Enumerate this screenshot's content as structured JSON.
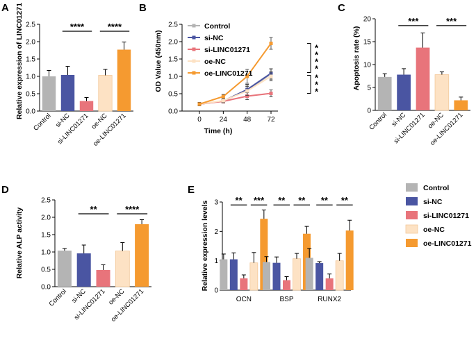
{
  "colors": {
    "Control": "#b4b4b4",
    "si-NC": "#4a55a2",
    "si-LINC01271": "#e8747b",
    "oe-NC": "#fde2c4",
    "oe-LINC01271": "#f59a30"
  },
  "chart_data": [
    {
      "id": "A",
      "panel": "A",
      "type": "bar",
      "ylabel": "Relative expression of LINC01271",
      "ylim": [
        0,
        2.5
      ],
      "yticks": [
        "0.0",
        "0.5",
        "1.0",
        "1.5",
        "2.0",
        "2.5"
      ],
      "categories": [
        "Control",
        "si-NC",
        "si-LINC01271",
        "oe-NC",
        "oe-LINC01271"
      ],
      "values": [
        1.0,
        1.04,
        0.29,
        1.03,
        1.77
      ],
      "errors": [
        0.17,
        0.25,
        0.1,
        0.17,
        0.22
      ],
      "significance": [
        {
          "from": 1,
          "to": 2,
          "label": "****",
          "y": 2.3
        },
        {
          "from": 3,
          "to": 4,
          "label": "****",
          "y": 2.3
        }
      ]
    },
    {
      "id": "B",
      "panel": "B",
      "type": "line",
      "xlabel": "Time (h)",
      "ylabel": "OD Value (450nm)",
      "ylim": [
        0,
        2.5
      ],
      "xlim": [
        0,
        72
      ],
      "yticks": [
        "0.0",
        "0.5",
        "1.0",
        "1.5",
        "2.0",
        "2.5"
      ],
      "xticks": [
        "0",
        "24",
        "48",
        "72"
      ],
      "x": [
        0,
        24,
        48,
        72
      ],
      "series": [
        {
          "name": "Control",
          "values": [
            0.2,
            0.29,
            0.6,
            1.07
          ],
          "errors": [
            0.05,
            0.05,
            0.15,
            0.15
          ]
        },
        {
          "name": "si-NC",
          "values": [
            0.2,
            0.29,
            0.62,
            1.09
          ],
          "errors": [
            0.05,
            0.05,
            0.15,
            0.12
          ]
        },
        {
          "name": "si-LINC01271",
          "values": [
            0.2,
            0.28,
            0.43,
            0.51
          ],
          "errors": [
            0.05,
            0.05,
            0.1,
            0.1
          ]
        },
        {
          "name": "oe-NC",
          "values": [
            0.2,
            0.3,
            0.58,
            1.0
          ],
          "errors": [
            0.05,
            0.05,
            0.13,
            0.13
          ]
        },
        {
          "name": "oe-LINC01271",
          "values": [
            0.2,
            0.42,
            1.0,
            1.95
          ],
          "errors": [
            0.05,
            0.06,
            0.2,
            0.17
          ]
        }
      ],
      "significance": [
        {
          "label": "****",
          "y1": 1.95,
          "y2": 1.07
        },
        {
          "label": "***",
          "y1": 1.07,
          "y2": 0.51
        }
      ]
    },
    {
      "id": "C",
      "panel": "C",
      "type": "bar",
      "ylabel": "Apoptosis rate (%)",
      "ylim": [
        0,
        20
      ],
      "yticks": [
        "0",
        "5",
        "10",
        "15",
        "20"
      ],
      "categories": [
        "Control",
        "si-NC",
        "si-LINC01271",
        "oe-NC",
        "oe-LINC01271"
      ],
      "values": [
        7.3,
        7.8,
        13.7,
        7.8,
        2.2
      ],
      "errors": [
        0.7,
        1.3,
        3.2,
        0.6,
        0.7
      ],
      "significance": [
        {
          "from": 1,
          "to": 2,
          "label": "***",
          "y": 18.5
        },
        {
          "from": 3,
          "to": 4,
          "label": "***",
          "y": 18.5
        }
      ]
    },
    {
      "id": "D",
      "panel": "D",
      "type": "bar",
      "ylabel": "Relative ALP activity",
      "ylim": [
        0,
        2.5
      ],
      "yticks": [
        "0.0",
        "0.5",
        "1.0",
        "1.5",
        "2.0",
        "2.5"
      ],
      "categories": [
        "Control",
        "si-NC",
        "si-LINC01271",
        "oe-NC",
        "oe-LINC01271"
      ],
      "values": [
        1.04,
        0.96,
        0.48,
        1.03,
        1.8
      ],
      "errors": [
        0.06,
        0.24,
        0.15,
        0.24,
        0.13
      ],
      "significance": [
        {
          "from": 1,
          "to": 2,
          "label": "**",
          "y": 2.1
        },
        {
          "from": 3,
          "to": 4,
          "label": "****",
          "y": 2.1
        }
      ]
    },
    {
      "id": "E",
      "panel": "E",
      "type": "bar",
      "ylabel": "Relative expression levels",
      "ylim": [
        0,
        3
      ],
      "yticks": [
        "0",
        "1",
        "2",
        "3"
      ],
      "categories": [
        "OCN",
        "BSP",
        "RUNX2"
      ],
      "series": [
        {
          "name": "Control",
          "values": [
            1.05,
            0.96,
            1.1
          ],
          "errors": [
            0.18,
            0.18,
            0.32
          ]
        },
        {
          "name": "si-NC",
          "values": [
            1.05,
            0.93,
            0.92
          ],
          "errors": [
            0.22,
            0.2,
            0.05
          ]
        },
        {
          "name": "si-LINC01271",
          "values": [
            0.4,
            0.34,
            0.4
          ],
          "errors": [
            0.12,
            0.12,
            0.15
          ]
        },
        {
          "name": "oe-NC",
          "values": [
            0.93,
            1.07,
            1.0
          ],
          "errors": [
            0.35,
            0.18,
            0.25
          ]
        },
        {
          "name": "oe-LINC01271",
          "values": [
            2.43,
            1.92,
            2.03
          ],
          "errors": [
            0.3,
            0.25,
            0.35
          ]
        }
      ],
      "significance": [
        {
          "group": 0,
          "from": 1,
          "to": 2,
          "label": "**",
          "y": 2.9
        },
        {
          "group": 0,
          "from": 3,
          "to": 4,
          "label": "***",
          "y": 2.9
        },
        {
          "group": 1,
          "from": 1,
          "to": 2,
          "label": "**",
          "y": 2.9
        },
        {
          "group": 1,
          "from": 3,
          "to": 4,
          "label": "**",
          "y": 2.9
        },
        {
          "group": 2,
          "from": 1,
          "to": 2,
          "label": "**",
          "y": 2.9
        },
        {
          "group": 2,
          "from": 3,
          "to": 4,
          "label": "**",
          "y": 2.9
        }
      ]
    }
  ],
  "legend": {
    "B": [
      "Control",
      "si-NC",
      "si-LINC01271",
      "oe-NC",
      "oe-LINC01271"
    ],
    "E": [
      "Control",
      "si-NC",
      "si-LINC01271",
      "oe-NC",
      "oe-LINC01271"
    ]
  }
}
